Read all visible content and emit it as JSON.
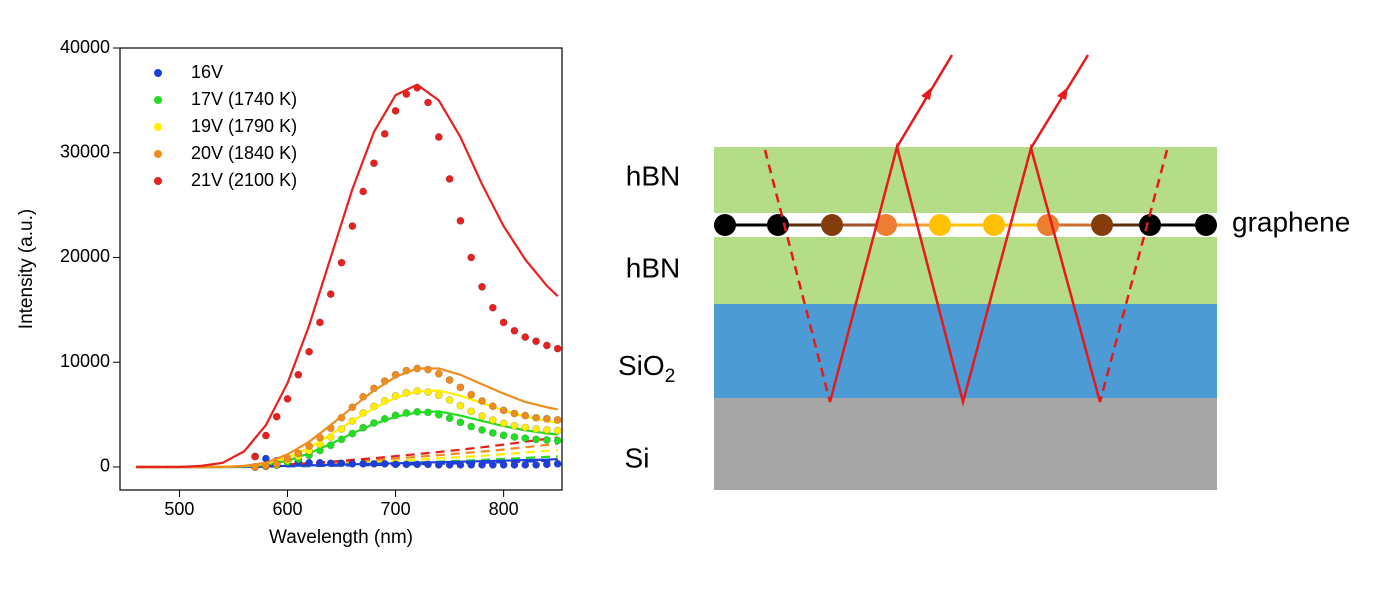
{
  "chart_data": {
    "type": "scatter",
    "xlabel": "Wavelength (nm)",
    "ylabel": "Intensity (a.u.)",
    "xlim": [
      445,
      854
    ],
    "ylim": [
      -2200,
      40000
    ],
    "xticks": [
      500,
      600,
      700,
      800
    ],
    "yticks": [
      0,
      10000,
      20000,
      30000,
      40000
    ],
    "legend": "upper left",
    "x": [
      570,
      580,
      590,
      600,
      610,
      620,
      630,
      640,
      650,
      660,
      670,
      680,
      690,
      700,
      710,
      720,
      730,
      740,
      750,
      760,
      770,
      780,
      790,
      800,
      810,
      820,
      830,
      840,
      850
    ],
    "fit_x": [
      460,
      480,
      500,
      520,
      540,
      560,
      580,
      600,
      620,
      640,
      660,
      680,
      700,
      720,
      740,
      760,
      780,
      800,
      820,
      840,
      850
    ],
    "series": [
      {
        "name": "16V",
        "color": "#1f3fdb",
        "values": [
          1000,
          800,
          600,
          500,
          450,
          400,
          400,
          350,
          350,
          300,
          300,
          300,
          300,
          250,
          250,
          250,
          250,
          200,
          200,
          200,
          200,
          200,
          200,
          200,
          200,
          200,
          200,
          250,
          300
        ],
        "fit": [
          0,
          0,
          0,
          0,
          0,
          0,
          50,
          100,
          150,
          200,
          250,
          300,
          350,
          400,
          450,
          500,
          550,
          600,
          650,
          700,
          750
        ],
        "reference": [
          0,
          0,
          0,
          0,
          0,
          10,
          30,
          50,
          80,
          110,
          140,
          180,
          220,
          260,
          310,
          350,
          400,
          460,
          520,
          580,
          600
        ]
      },
      {
        "name": "17V (1740 K)",
        "color": "#22dd22",
        "values": [
          0,
          60,
          170,
          450,
          730,
          1120,
          1570,
          2070,
          2630,
          3190,
          3750,
          4200,
          4590,
          4930,
          5150,
          5260,
          5210,
          4980,
          4650,
          4260,
          3860,
          3530,
          3250,
          3020,
          2860,
          2740,
          2630,
          2580,
          2520
        ],
        "fit": [
          0,
          0,
          0,
          0,
          0,
          50,
          200,
          600,
          1300,
          2200,
          3200,
          4100,
          4800,
          5200,
          5300,
          4900,
          4400,
          3900,
          3500,
          3200,
          3100
        ],
        "reference": [
          0,
          0,
          0,
          0,
          0,
          20,
          50,
          90,
          130,
          180,
          240,
          300,
          370,
          440,
          510,
          590,
          670,
          760,
          860,
          960,
          1000
        ]
      },
      {
        "name": "19V (1790 K)",
        "color": "#ffee00",
        "values": [
          0,
          80,
          230,
          620,
          1000,
          1540,
          2160,
          2850,
          3620,
          4390,
          5160,
          5780,
          6310,
          6780,
          7080,
          7240,
          7160,
          6850,
          6390,
          5850,
          5310,
          4850,
          4470,
          4160,
          3930,
          3770,
          3620,
          3540,
          3470
        ],
        "fit": [
          0,
          0,
          0,
          0,
          0,
          80,
          300,
          900,
          1800,
          3100,
          4400,
          5600,
          6600,
          7200,
          7300,
          6800,
          6100,
          5400,
          4800,
          4400,
          4200
        ],
        "reference": [
          0,
          0,
          0,
          0,
          0,
          30,
          80,
          140,
          210,
          290,
          380,
          480,
          590,
          700,
          820,
          940,
          1070,
          1220,
          1380,
          1540,
          1600
        ]
      },
      {
        "name": "20V (1840 K)",
        "color": "#f08c1e",
        "values": [
          0,
          100,
          300,
          800,
          1300,
          2000,
          2800,
          3700,
          4700,
          5700,
          6700,
          7500,
          8200,
          8800,
          9200,
          9400,
          9300,
          8900,
          8300,
          7600,
          6900,
          6300,
          5800,
          5400,
          5100,
          4900,
          4700,
          4600,
          4500
        ],
        "fit": [
          0,
          0,
          0,
          0,
          0,
          100,
          400,
          1200,
          2400,
          4000,
          5700,
          7300,
          8600,
          9400,
          9400,
          8800,
          7900,
          7000,
          6200,
          5700,
          5500
        ],
        "reference": [
          0,
          0,
          0,
          0,
          0,
          40,
          110,
          200,
          290,
          400,
          530,
          660,
          810,
          970,
          1120,
          1300,
          1470,
          1670,
          1890,
          2110,
          2200
        ]
      },
      {
        "name": "21V (2100 K)",
        "color": "#e82020",
        "values": [
          1000,
          3000,
          4800,
          6500,
          8800,
          11000,
          13800,
          16500,
          19500,
          23000,
          26300,
          29000,
          31800,
          34000,
          35600,
          36200,
          34800,
          31500,
          27500,
          23500,
          20000,
          17200,
          15200,
          13800,
          13000,
          12400,
          12000,
          11600,
          11300
        ],
        "fit": [
          0,
          0,
          0,
          100,
          400,
          1500,
          4000,
          8000,
          13500,
          20000,
          26500,
          32000,
          35500,
          36500,
          35000,
          31500,
          27000,
          23000,
          19800,
          17300,
          16300
        ],
        "reference": [
          0,
          0,
          0,
          0,
          0,
          60,
          140,
          250,
          360,
          500,
          670,
          840,
          1040,
          1230,
          1430,
          1650,
          1880,
          2130,
          2410,
          2690,
          2800
        ]
      }
    ]
  },
  "diagram": {
    "layers": [
      {
        "label": "hBN"
      },
      {
        "label": "hBN"
      },
      {
        "label": "SiO",
        "sub": "2"
      },
      {
        "label": "Si"
      }
    ],
    "graphene_label": "graphene"
  }
}
